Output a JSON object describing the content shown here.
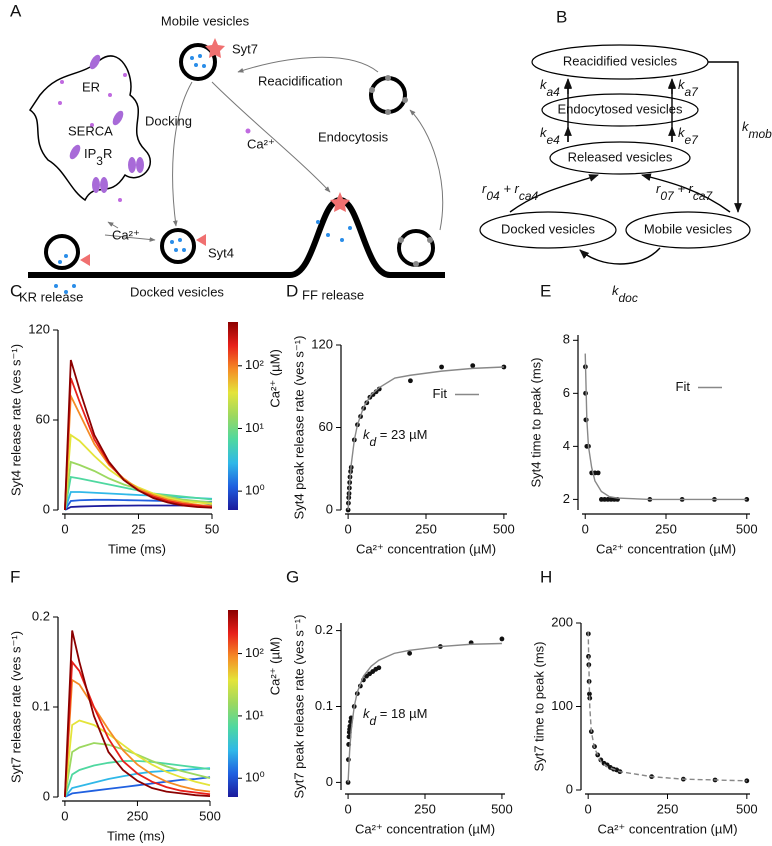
{
  "diagram_a": {
    "panel": "A",
    "mobile_vesicles": "Mobile vesicles",
    "syt7": "Syt7",
    "reacidification": "Reacidification",
    "er": "ER",
    "docking": "Docking",
    "serca": "SERCA",
    "ip3r": {
      "main": "IP",
      "sub": "3",
      "rest": "R"
    },
    "calcium_center": "Ca²⁺",
    "calcium_er": "Ca²⁺",
    "endocytosis": "Endocytosis",
    "syt4": "Syt4",
    "kr_release": "KR release",
    "docked_vesicles": "Docked vesicles",
    "ff_release": "FF release"
  },
  "diagram_b": {
    "panel": "B",
    "nodes": [
      "Reacidified vesicles",
      "Endocytosed vesicles",
      "Released vesicles",
      "Docked vesicles",
      "Mobile vesicles"
    ],
    "ka4": {
      "main": "k",
      "sub": "a4"
    },
    "ka7": {
      "main": "k",
      "sub": "a7"
    },
    "ke4": {
      "main": "k",
      "sub": "e4"
    },
    "ke7": {
      "main": "k",
      "sub": "e7"
    },
    "kmob": {
      "main": "k",
      "sub": "mob"
    },
    "kdoc": {
      "main": "k",
      "sub": "doc"
    },
    "r4": {
      "parts": [
        {
          "main": "r",
          "sub": "04"
        },
        {
          "main": " + r",
          "sub": "ca4"
        }
      ]
    },
    "r7": {
      "parts": [
        {
          "main": "r",
          "sub": "07"
        },
        {
          "main": " + r",
          "sub": "ca7"
        }
      ]
    }
  },
  "chart_data": [
    {
      "type": "line",
      "panel": "C",
      "y_label": "Syt4 release rate (ves s⁻¹)",
      "x_label": "Time (ms)",
      "x": [
        0,
        2,
        5,
        10,
        15,
        20,
        25,
        30,
        35,
        40,
        45,
        50
      ],
      "xlim": [
        -1,
        50
      ],
      "xticks": [
        0,
        25,
        50
      ],
      "ylim": [
        0,
        120
      ],
      "yticks": [
        0,
        60,
        120
      ],
      "series": [
        {
          "color": "#1c1a9c",
          "values": [
            0,
            2,
            2.3,
            2.6,
            2.8,
            2.9,
            3,
            3,
            3,
            3,
            3,
            3
          ]
        },
        {
          "color": "#2060e0",
          "values": [
            0,
            6,
            6.5,
            6.8,
            6.8,
            6.6,
            6.4,
            6.2,
            6,
            5.8,
            5.6,
            5.4
          ]
        },
        {
          "color": "#30b8e8",
          "values": [
            0,
            12,
            12,
            11.5,
            11,
            10.5,
            10,
            9.5,
            9,
            8.5,
            8,
            7.5
          ]
        },
        {
          "color": "#4fd8a0",
          "values": [
            0,
            22,
            21,
            19,
            17,
            15,
            13,
            11,
            10,
            9,
            8,
            7
          ]
        },
        {
          "color": "#9cd860",
          "values": [
            0,
            32,
            30,
            26,
            21,
            17,
            14,
            11,
            9,
            7,
            6,
            5
          ]
        },
        {
          "color": "#e4e43a",
          "values": [
            0,
            50,
            46,
            36,
            27,
            20,
            15,
            11,
            8,
            6,
            5,
            4
          ]
        },
        {
          "color": "#f58b25",
          "values": [
            0,
            76,
            64,
            44,
            30,
            21,
            14,
            10,
            7,
            5,
            3.5,
            2.5
          ]
        },
        {
          "color": "#e8201a",
          "values": [
            0,
            88,
            72,
            47,
            31,
            20,
            13,
            9,
            6,
            4,
            3,
            2
          ]
        },
        {
          "color": "#8b0000",
          "values": [
            0,
            100,
            80,
            50,
            32,
            20,
            13,
            8,
            5,
            3,
            2,
            1.5
          ]
        }
      ],
      "colorbar": {
        "label": "Ca²⁺ (µM)",
        "log": true,
        "lim": [
          0.5,
          500
        ],
        "ticks": [
          {
            "value": 1,
            "label": "10⁰"
          },
          {
            "value": 10,
            "label": "10¹"
          },
          {
            "value": 100,
            "label": "10²"
          }
        ],
        "colors": [
          "#1c1a9c",
          "#2060e0",
          "#30b8e8",
          "#4fd8a0",
          "#9cd860",
          "#e4e43a",
          "#f58b25",
          "#e8201a",
          "#8b0000"
        ]
      }
    },
    {
      "type": "scatter",
      "panel": "D",
      "y_label": "Syt4 peak release rate (ves s⁻¹)",
      "x_label": "Ca²⁺ concentration (µM)",
      "x": [
        0,
        1,
        2,
        3,
        4,
        5,
        6,
        8,
        10,
        20,
        30,
        40,
        50,
        60,
        70,
        80,
        90,
        100,
        200,
        300,
        400,
        500
      ],
      "xlim": [
        -10,
        510
      ],
      "xticks": [
        0,
        250,
        500
      ],
      "ylim": [
        0,
        120
      ],
      "yticks": [
        0,
        60,
        120
      ],
      "legend": "upper right",
      "annotation": {
        "main": "k",
        "sub": "d",
        "rest": " = 23 µM"
      },
      "series": [
        {
          "color": "#111111",
          "style": "dots",
          "values": [
            0,
            5,
            9,
            12,
            16,
            20,
            24,
            28,
            31,
            51,
            62,
            68,
            74,
            78,
            82,
            84,
            86,
            88,
            94,
            104,
            105,
            104
          ]
        },
        {
          "name": "Fit",
          "color": "#888888",
          "style": "line",
          "x": [
            0,
            5,
            10,
            20,
            30,
            50,
            75,
            100,
            150,
            200,
            300,
            400,
            500
          ],
          "values": [
            0,
            20,
            33,
            51,
            62,
            75,
            84,
            89,
            96,
            98,
            101,
            103,
            104
          ]
        }
      ]
    },
    {
      "type": "scatter",
      "panel": "E",
      "y_label": "Syt4 time to peak (ms)",
      "x_label": "Ca²⁺ concentration (µM)",
      "x": [
        0.5,
        1,
        2,
        3,
        5,
        10,
        20,
        30,
        40,
        50,
        60,
        70,
        80,
        90,
        100,
        200,
        300,
        400,
        500
      ],
      "xlim": [
        -10,
        510
      ],
      "xticks": [
        0,
        250,
        500
      ],
      "ylim": [
        1.6,
        8.2
      ],
      "yticks": [
        2,
        4,
        6,
        8
      ],
      "legend": "upper right",
      "series": [
        {
          "color": "#111111",
          "style": "dots",
          "values": [
            7,
            6,
            5,
            5,
            4,
            4,
            3,
            3,
            3,
            2,
            2,
            2,
            2,
            2,
            2,
            2,
            2,
            2,
            2
          ]
        },
        {
          "name": "Fit",
          "color": "#888888",
          "style": "line",
          "x": [
            0,
            5,
            10,
            20,
            30,
            50,
            75,
            100,
            200,
            500
          ],
          "values": [
            7.5,
            5,
            4,
            3.2,
            2.7,
            2.3,
            2.1,
            2.05,
            2,
            2
          ]
        }
      ]
    },
    {
      "type": "line",
      "panel": "F",
      "y_label": "Syt7 release rate (ves s⁻¹)",
      "x_label": "Time (ms)",
      "x": [
        0,
        25,
        50,
        100,
        150,
        200,
        250,
        300,
        350,
        400,
        450,
        500
      ],
      "xlim": [
        -10,
        500
      ],
      "xticks": [
        0,
        250,
        500
      ],
      "ylim": [
        0,
        0.2
      ],
      "yticks": [
        0,
        0.1,
        0.2
      ],
      "series": [
        {
          "color": "#2060e0",
          "values": [
            0,
            0.004,
            0.005,
            0.007,
            0.009,
            0.011,
            0.013,
            0.015,
            0.017,
            0.019,
            0.02,
            0.022
          ]
        },
        {
          "color": "#30b8e8",
          "values": [
            0,
            0.01,
            0.012,
            0.016,
            0.02,
            0.023,
            0.026,
            0.028,
            0.029,
            0.03,
            0.031,
            0.032
          ]
        },
        {
          "color": "#4fd8a0",
          "values": [
            0,
            0.025,
            0.03,
            0.035,
            0.038,
            0.04,
            0.04,
            0.039,
            0.037,
            0.035,
            0.033,
            0.031
          ]
        },
        {
          "color": "#9cd860",
          "values": [
            0,
            0.05,
            0.055,
            0.06,
            0.058,
            0.053,
            0.047,
            0.04,
            0.034,
            0.029,
            0.025,
            0.021
          ]
        },
        {
          "color": "#e4e43a",
          "values": [
            0,
            0.08,
            0.085,
            0.08,
            0.07,
            0.058,
            0.046,
            0.036,
            0.028,
            0.022,
            0.017,
            0.013
          ]
        },
        {
          "color": "#f58b25",
          "values": [
            0,
            0.13,
            0.125,
            0.1,
            0.075,
            0.052,
            0.036,
            0.025,
            0.017,
            0.012,
            0.008,
            0.006
          ]
        },
        {
          "color": "#e8201a",
          "values": [
            0,
            0.15,
            0.14,
            0.1,
            0.065,
            0.04,
            0.026,
            0.017,
            0.011,
            0.007,
            0.005,
            0.003
          ]
        },
        {
          "color": "#8b0000",
          "values": [
            0,
            0.185,
            0.15,
            0.09,
            0.05,
            0.03,
            0.018,
            0.01,
            0.006,
            0.004,
            0.002,
            0.001
          ]
        }
      ],
      "colorbar": {
        "label": "Ca²⁺ (µM)",
        "log": true,
        "lim": [
          0.5,
          500
        ],
        "ticks": [
          {
            "value": 1,
            "label": "10⁰"
          },
          {
            "value": 10,
            "label": "10¹"
          },
          {
            "value": 100,
            "label": "10²"
          }
        ],
        "colors": [
          "#1c1a9c",
          "#2060e0",
          "#30b8e8",
          "#4fd8a0",
          "#9cd860",
          "#e4e43a",
          "#f58b25",
          "#e8201a",
          "#8b0000"
        ]
      }
    },
    {
      "type": "scatter",
      "panel": "G",
      "y_label": "Syt7 peak release rate (ves s⁻¹)",
      "x_label": "Ca²⁺ concentration (µM)",
      "x": [
        0,
        1,
        2,
        3,
        4,
        5,
        6,
        8,
        10,
        20,
        30,
        40,
        50,
        60,
        70,
        80,
        90,
        100,
        200,
        300,
        400,
        500
      ],
      "xlim": [
        -10,
        510
      ],
      "xticks": [
        0,
        250,
        500
      ],
      "ylim": [
        -0.01,
        0.21
      ],
      "yticks": [
        0,
        0.1,
        0.2
      ],
      "annotation": {
        "main": "k",
        "sub": "d",
        "rest": " = 18 µM"
      },
      "series": [
        {
          "color": "#111111",
          "style": "dots",
          "values": [
            0,
            0.03,
            0.05,
            0.06,
            0.066,
            0.07,
            0.074,
            0.08,
            0.085,
            0.1,
            0.117,
            0.127,
            0.135,
            0.14,
            0.143,
            0.146,
            0.149,
            0.151,
            0.17,
            0.179,
            0.184,
            0.189
          ]
        },
        {
          "color": "#888888",
          "style": "line",
          "x": [
            0,
            5,
            10,
            20,
            30,
            50,
            75,
            100,
            150,
            200,
            300,
            400,
            500
          ],
          "values": [
            0,
            0.041,
            0.068,
            0.1,
            0.119,
            0.14,
            0.153,
            0.161,
            0.17,
            0.174,
            0.179,
            0.182,
            0.183
          ]
        }
      ]
    },
    {
      "type": "scatter",
      "panel": "H",
      "y_label": "Syt7 time to peak (ms)",
      "x_label": "Ca²⁺ concentration (µM)",
      "x": [
        0.5,
        1,
        2,
        3,
        4,
        5,
        10,
        20,
        30,
        40,
        50,
        60,
        70,
        80,
        90,
        100,
        200,
        300,
        400,
        500
      ],
      "xlim": [
        -10,
        510
      ],
      "xticks": [
        0,
        250,
        500
      ],
      "ylim": [
        0,
        200
      ],
      "yticks": [
        0,
        100,
        200
      ],
      "series": [
        {
          "color": "#111111",
          "style": "dots",
          "values": [
            187,
            160,
            150,
            130,
            115,
            110,
            70,
            52,
            42,
            36,
            32,
            30,
            27,
            25,
            24,
            22,
            16,
            13,
            12,
            11
          ]
        },
        {
          "color": "#888888",
          "style": "line",
          "dash": true,
          "x": [
            0,
            5,
            10,
            20,
            40,
            60,
            100,
            200,
            300,
            500
          ],
          "values": [
            190,
            100,
            70,
            50,
            34,
            28,
            22,
            16,
            13,
            11
          ]
        }
      ]
    }
  ]
}
